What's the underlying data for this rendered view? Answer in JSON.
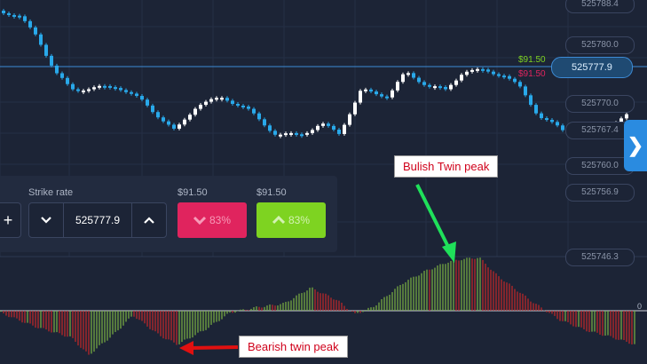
{
  "price_axis": {
    "labels": [
      "525788.4",
      "525780.0",
      "525770.0",
      "525767.4",
      "525760.0",
      "525756.9",
      "525746.3"
    ]
  },
  "current_price": "525777.9",
  "payout_up_label": "$91.50",
  "payout_down_label": "$91.50",
  "trade_panel": {
    "plus_label": "+",
    "strike_label": "Strike rate",
    "strike_value": "525777.9",
    "decrease_icon": "chevron-down-icon",
    "increase_icon": "chevron-up-icon",
    "down_button": {
      "payout": "$91.50",
      "percent": "83%",
      "icon": "chevron-down-icon"
    },
    "up_button": {
      "payout": "$91.50",
      "percent": "83%",
      "icon": "chevron-up-icon"
    }
  },
  "side_panel_icon": "chevron-right-icon",
  "indicator": {
    "zero_label": "0"
  },
  "annotations": {
    "bullish": "Bulish Twin peak",
    "bearish": "Bearish twin peak"
  },
  "colors": {
    "background": "#1c2436",
    "candle_up": "#ffffff",
    "candle_down": "#29a9ea",
    "histogram_positive": "#7cb342",
    "histogram_negative": "#c62828",
    "current_price_line": "#3d8bd6",
    "arrow_green": "#1fe05a",
    "arrow_red": "#e01010"
  }
}
